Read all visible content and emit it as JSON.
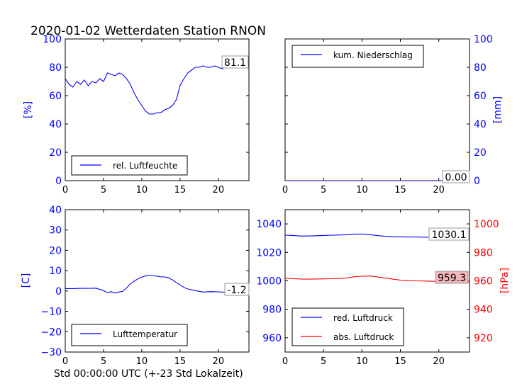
{
  "title": "2020-01-02 Wetterdaten Station RNON",
  "xlabel": "Std 00:00:00 UTC (+-23 Std Lokalzeit)",
  "colors": {
    "blue": "#0000ff",
    "red": "#ff0000",
    "black": "#000000",
    "badge_red": "#f4b8b8"
  },
  "chart_data": [
    {
      "type": "line",
      "panel": "top-left",
      "ylabel": "[%]",
      "ylabel_color": "#0000ff",
      "ylim": [
        0,
        100
      ],
      "xlim": [
        0,
        24
      ],
      "yticks": [
        "0",
        "20",
        "40",
        "60",
        "80",
        "100"
      ],
      "xticks": [
        "0",
        "5",
        "10",
        "15",
        "20"
      ],
      "legend_position": "lower-left",
      "last_value_label": "81.1",
      "series": [
        {
          "name": "rel. Luftfeuchte",
          "color": "#0000ff",
          "x": [
            0,
            0.5,
            1,
            1.5,
            2,
            2.5,
            3,
            3.5,
            4,
            4.5,
            5,
            5.5,
            6,
            6.5,
            7,
            7.5,
            8,
            8.5,
            9,
            9.5,
            10,
            10.5,
            11,
            11.5,
            12,
            12.5,
            13,
            13.5,
            14,
            14.5,
            15,
            15.5,
            16,
            16.5,
            17,
            17.5,
            18,
            18.5,
            19,
            19.5,
            20,
            20.5,
            21,
            21.5,
            22,
            22.5,
            23,
            23.5,
            24
          ],
          "y": [
            72,
            68,
            66,
            70,
            68,
            71,
            67,
            70,
            69,
            72,
            70,
            76,
            75,
            74,
            76,
            75,
            72,
            68,
            62,
            57,
            53,
            49,
            47,
            47,
            48,
            48,
            50,
            51,
            53,
            57,
            67,
            72,
            76,
            78,
            80,
            80,
            81,
            80,
            80,
            81,
            80,
            79,
            80,
            80,
            81,
            81,
            81,
            81,
            81
          ]
        }
      ]
    },
    {
      "type": "line",
      "panel": "top-right",
      "ylabel": "[mm]",
      "ylabel_color": "#0000ff",
      "ylim": [
        0,
        100
      ],
      "xlim": [
        0,
        24
      ],
      "yticks": [
        "0",
        "20",
        "40",
        "60",
        "80",
        "100"
      ],
      "xticks": [
        "0",
        "5",
        "10",
        "15",
        "20"
      ],
      "legend_position": "upper-left",
      "last_value_label": "0.00",
      "series": [
        {
          "name": "kum. Niederschlag",
          "color": "#0000ff",
          "x": [
            0,
            24
          ],
          "y": [
            0,
            0
          ]
        }
      ]
    },
    {
      "type": "line",
      "panel": "bottom-left",
      "ylabel": "[C]",
      "ylabel_color": "#0000ff",
      "ylim": [
        -30,
        40
      ],
      "xlim": [
        0,
        24
      ],
      "yticks": [
        "−30",
        "−20",
        "−10",
        "0",
        "10",
        "20",
        "30",
        "40"
      ],
      "xticks": [
        "0",
        "5",
        "10",
        "15",
        "20"
      ],
      "legend_position": "lower-left",
      "last_value_label": "-1.2",
      "series": [
        {
          "name": "Lufttemperatur",
          "color": "#0000ff",
          "x": [
            0,
            1,
            2,
            3,
            4,
            5,
            5.5,
            6,
            6.5,
            7,
            7.5,
            8,
            8.5,
            9,
            9.5,
            10,
            10.5,
            11,
            11.5,
            12,
            12.5,
            13,
            13.5,
            14,
            14.5,
            15,
            15.5,
            16,
            17,
            18,
            19,
            20,
            21,
            22,
            23,
            24
          ],
          "y": [
            1.2,
            1.2,
            1.3,
            1.3,
            1.4,
            0.2,
            -0.8,
            -0.3,
            -1,
            -0.5,
            -0.2,
            1.5,
            3.5,
            4.8,
            6,
            6.8,
            7.5,
            7.8,
            7.6,
            7.3,
            7,
            6.9,
            6.5,
            5.5,
            4.2,
            3,
            1.8,
            1,
            0.2,
            -0.5,
            -0.3,
            -0.4,
            -0.6,
            -0.9,
            -1.1,
            -1.2
          ]
        }
      ]
    },
    {
      "type": "line",
      "panel": "bottom-right",
      "ylabel": "[hPa]",
      "ylabel_color": "#ff0000",
      "ylim": [
        950,
        1050
      ],
      "y2lim": [
        910,
        1010
      ],
      "xlim": [
        0,
        24
      ],
      "yticks": [
        "960",
        "980",
        "1000",
        "1020",
        "1040"
      ],
      "y2ticks": [
        "920",
        "940",
        "960",
        "980",
        "1000"
      ],
      "xticks": [
        "0",
        "5",
        "10",
        "15",
        "20"
      ],
      "legend_position": "lower-left",
      "last_value_labels": [
        "1030.1",
        "959.3"
      ],
      "series": [
        {
          "name": "red. Luftdruck",
          "color": "#0000ff",
          "axis": "left",
          "x": [
            0,
            1,
            2,
            3,
            4,
            5,
            6,
            7,
            8,
            9,
            10,
            11,
            12,
            13,
            14,
            15,
            16,
            17,
            18,
            19,
            20,
            21,
            22,
            23,
            24
          ],
          "y": [
            1032.1,
            1031.9,
            1031.5,
            1031.5,
            1031.7,
            1031.9,
            1032.1,
            1032.2,
            1032.4,
            1032.8,
            1032.9,
            1032.5,
            1031.8,
            1031.3,
            1031.0,
            1030.9,
            1030.8,
            1030.8,
            1030.7,
            1030.6,
            1030.5,
            1030.4,
            1030.3,
            1030.2,
            1030.1
          ]
        },
        {
          "name": "abs. Luftdruck",
          "color": "#ff0000",
          "axis": "right",
          "x": [
            0,
            1,
            2,
            3,
            4,
            5,
            6,
            7,
            8,
            9,
            10,
            11,
            12,
            13,
            14,
            15,
            16,
            17,
            18,
            19,
            20,
            21,
            22,
            23,
            24
          ],
          "y": [
            961.8,
            961.6,
            961.3,
            961.2,
            961.3,
            961.4,
            961.5,
            961.7,
            962.0,
            962.9,
            963.3,
            963.4,
            962.8,
            962.0,
            961.2,
            960.5,
            960.2,
            960.0,
            959.9,
            959.7,
            959.6,
            959.5,
            959.4,
            959.4,
            959.3
          ]
        }
      ]
    }
  ]
}
